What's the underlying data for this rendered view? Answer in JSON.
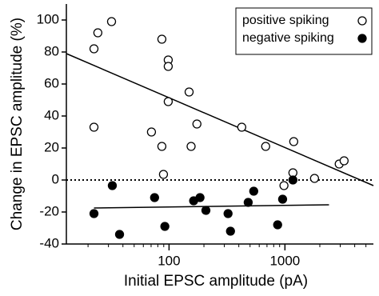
{
  "chart_data": {
    "type": "scatter",
    "xlabel": "Initial EPSC amplitude (pA)",
    "ylabel": "Change in EPSC amplitude (%)",
    "xscale": "log",
    "xlim": [
      13,
      5800
    ],
    "xticks": [
      100,
      1000
    ],
    "xminorticks": [
      20,
      30,
      40,
      50,
      60,
      70,
      80,
      90,
      200,
      300,
      400,
      500,
      600,
      700,
      800,
      900,
      2000,
      3000,
      4000,
      5000
    ],
    "ylim": [
      -40,
      110
    ],
    "yticks": [
      -40,
      -20,
      0,
      20,
      40,
      60,
      80,
      100
    ],
    "hline": 0,
    "legend": "upper right",
    "series": [
      {
        "name": "positive spiking",
        "marker": "open",
        "color": "#000",
        "x": [
          22.5,
          24.3,
          31.9,
          22.5,
          86.7,
          98.4,
          98.4,
          98.4,
          149,
          70.5,
          86.7,
          89.5,
          174,
          155,
          424,
          682,
          981,
          1172,
          1191,
          1800,
          2940,
          3240
        ],
        "values": [
          82,
          92,
          99,
          33,
          88,
          75,
          71,
          49,
          55,
          30,
          21,
          3.5,
          35,
          21,
          33,
          21,
          -3.5,
          4.5,
          24,
          1,
          10,
          12
        ],
        "fit": {
          "x": [
            13,
            5800
          ],
          "values": [
            79,
            -3.5
          ]
        }
      },
      {
        "name": "negative spiking",
        "marker": "filled",
        "color": "#000",
        "x": [
          22.5,
          32.4,
          37.4,
          75,
          92,
          163,
          208,
          185,
          323,
          339,
          538,
          482,
          1172,
          955,
          865
        ],
        "values": [
          -21,
          -3.5,
          -34,
          -11,
          -29,
          -13,
          -19,
          -11,
          -21,
          -32,
          -7,
          -14,
          0,
          -12,
          -28
        ],
        "fit": {
          "x": [
            22.5,
            2400
          ],
          "values": [
            -17.5,
            -15.5
          ]
        }
      }
    ]
  }
}
